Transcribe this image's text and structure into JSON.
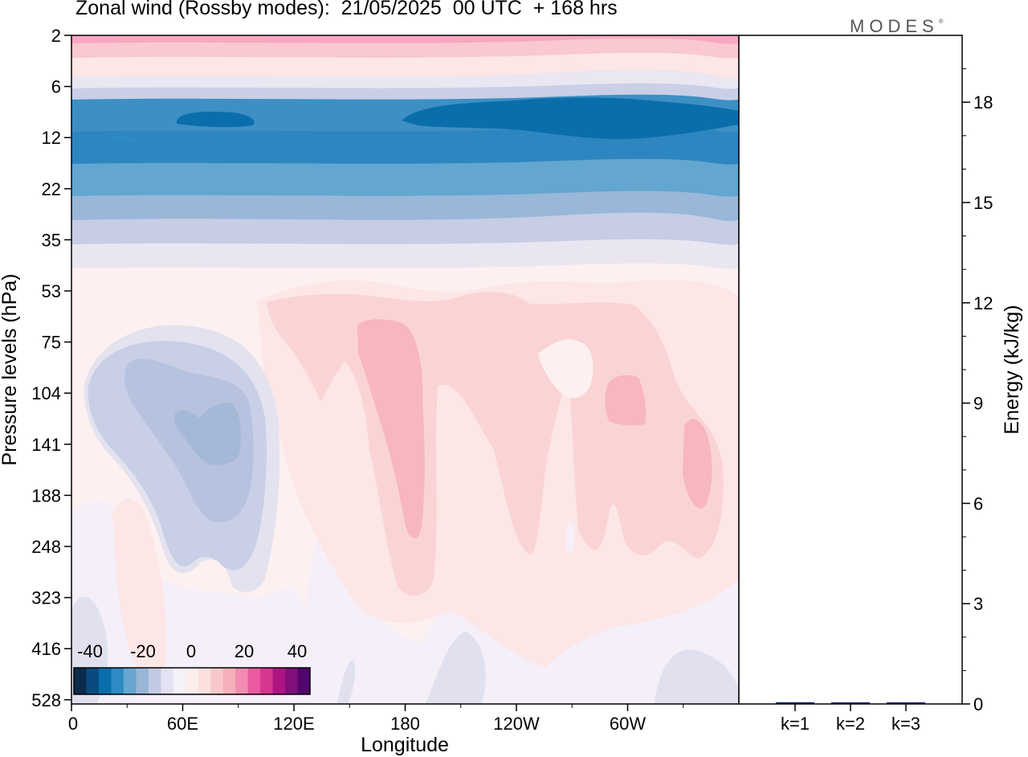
{
  "title": "Zonal wind (Rossby modes):  21/05/2025  00 UTC  + 168 hrs",
  "logo": "MODES",
  "logo_mark": "®",
  "chart_data": [
    {
      "type": "heatmap",
      "xlabel": "Longitude",
      "ylabel": "Pressure levels (hPa)",
      "x_ticks": [
        "0",
        "60E",
        "120E",
        "180",
        "120W",
        "60W"
      ],
      "y_ticks": [
        "2",
        "6",
        "12",
        "22",
        "35",
        "53",
        "75",
        "104",
        "141",
        "188",
        "248",
        "323",
        "416",
        "528"
      ],
      "colorbar": {
        "tick_labels": [
          "-40",
          "-20",
          "0",
          "20",
          "40"
        ],
        "colors": [
          "#0c2a4a",
          "#0b4a80",
          "#0a6eab",
          "#2e8ac2",
          "#66a6cf",
          "#9ab5d8",
          "#c3cbe4",
          "#e2e2f0",
          "#f5f1f8",
          "#fdeeee",
          "#fde0dd",
          "#fac8ca",
          "#f7b0ba",
          "#f28cb0",
          "#e95aa0",
          "#d63690",
          "#ae1582",
          "#810f7c",
          "#52066e"
        ]
      },
      "bands": [
        {
          "level": "2",
          "value": 25,
          "color": "#f7a8c0"
        },
        {
          "level": "3",
          "value": 18,
          "color": "#fac8d0"
        },
        {
          "level": "4",
          "value": 6,
          "color": "#fde6e6"
        },
        {
          "level": "5",
          "value": -2,
          "color": "#eae6f2"
        },
        {
          "level": "6",
          "value": -8,
          "color": "#c9cfe6"
        },
        {
          "level": "8",
          "value": -24,
          "color": "#3d8fc4"
        },
        {
          "level": "12",
          "value": -28,
          "color": "#2e86c1"
        },
        {
          "level": "17",
          "value": -20,
          "color": "#63a6cf"
        },
        {
          "level": "27",
          "value": -14,
          "color": "#99b7d8"
        },
        {
          "level": "35",
          "value": -8,
          "color": "#c6cde4"
        },
        {
          "level": "45",
          "value": -2,
          "color": "#e9e6f2"
        },
        {
          "level": "53-528",
          "value": 2,
          "color": "#fdf0f0"
        }
      ],
      "regions": [
        {
          "name": "easterly core 60E-120E",
          "level": "104-188",
          "value": -16,
          "color": "#a8bad9"
        },
        {
          "name": "westerly core 180",
          "level": "75-248",
          "value": 12,
          "color": "#f7b6c0"
        },
        {
          "name": "westerly core 60W",
          "level": "104-141",
          "value": 12,
          "color": "#f7b6c0"
        },
        {
          "name": "westerly core 30W",
          "level": "141-188",
          "value": 12,
          "color": "#f7b6c0"
        }
      ]
    },
    {
      "type": "bar",
      "categories": [
        "k=1",
        "k=2",
        "k=3"
      ],
      "values": [
        0.05,
        0.03,
        0.03
      ],
      "ylabel": "Energy (kJ/kg)",
      "ylim": [
        0,
        20
      ],
      "y_ticks": [
        "0",
        "3",
        "6",
        "9",
        "12",
        "15",
        "18"
      ],
      "bar_color": "#1a1a5a"
    }
  ]
}
